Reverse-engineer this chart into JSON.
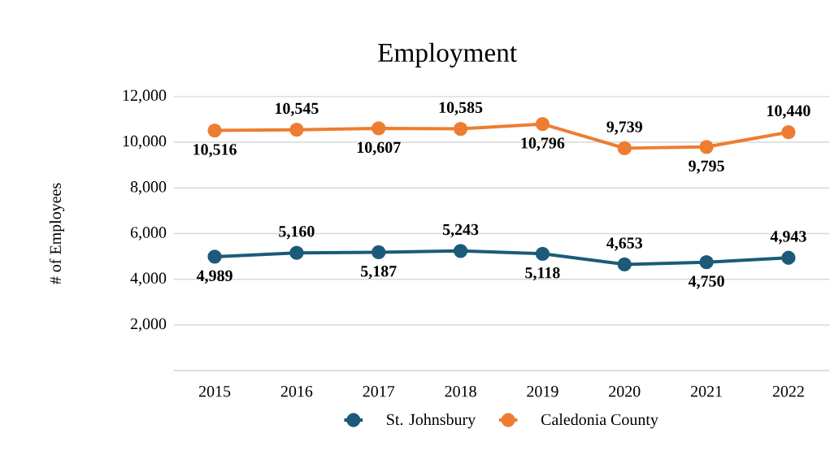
{
  "chart_data": {
    "type": "line",
    "title": "Employment",
    "ylabel": "# of Employees",
    "categories": [
      "2015",
      "2016",
      "2017",
      "2018",
      "2019",
      "2020",
      "2021",
      "2022"
    ],
    "series": [
      {
        "name": "St. Johnsbury",
        "color": "#1b5b78",
        "values": [
          4989,
          5160,
          5187,
          5243,
          5118,
          4653,
          4750,
          4943
        ],
        "value_labels": [
          "4,989",
          "5,160",
          "5,187",
          "5,243",
          "5,118",
          "4,653",
          "4,750",
          "4,943"
        ]
      },
      {
        "name": "Caledonia County",
        "color": "#ed7d31",
        "values": [
          10516,
          10545,
          10607,
          10585,
          10796,
          9739,
          9795,
          10440
        ],
        "value_labels": [
          "10,516",
          "10,545",
          "10,607",
          "10,585",
          "10,796",
          "9,739",
          "9,795",
          "10,440"
        ]
      }
    ],
    "ylim": [
      0,
      12000
    ],
    "yticks": [
      {
        "value": 0,
        "label": null
      },
      {
        "value": 2000,
        "label": "2,000"
      },
      {
        "value": 4000,
        "label": "4,000"
      },
      {
        "value": 6000,
        "label": "6,000"
      },
      {
        "value": 8000,
        "label": "8,000"
      },
      {
        "value": 10000,
        "label": "10,000"
      },
      {
        "value": 12000,
        "label": "12,000"
      }
    ],
    "grid": "y",
    "legend": "bottom",
    "marker": "circle",
    "line_style": "solid"
  }
}
